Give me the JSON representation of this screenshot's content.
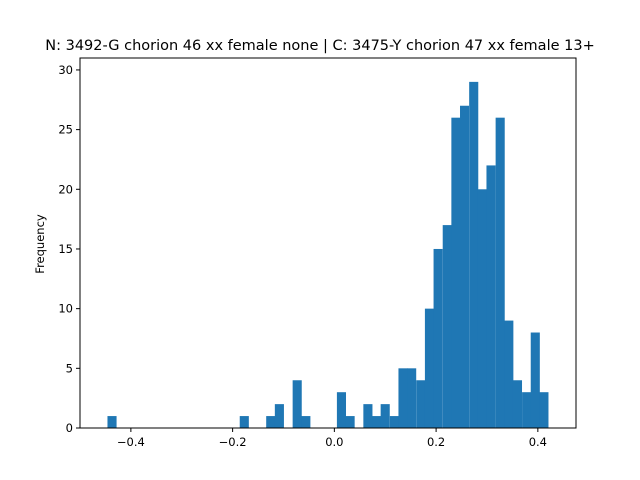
{
  "chart_data": {
    "type": "bar",
    "title": "N: 3492-G chorion 46 xx female none | C: 3475-Y chorion 47 xx female 13+",
    "xlabel": "",
    "ylabel": "Frequency",
    "xlim": [
      -0.5,
      0.475
    ],
    "ylim": [
      0,
      31
    ],
    "grid": false,
    "legend": "none",
    "bar_color": "#1f77b4",
    "bin_width": 0.0173,
    "x_ticks": [
      -0.4,
      -0.2,
      0.0,
      0.2,
      0.4
    ],
    "x_tick_labels": [
      "−0.4",
      "−0.2",
      "0.0",
      "0.2",
      "0.4"
    ],
    "y_ticks": [
      0,
      5,
      10,
      15,
      20,
      25,
      30
    ],
    "y_tick_labels": [
      "0",
      "5",
      "10",
      "15",
      "20",
      "25",
      "30"
    ],
    "bins": [
      {
        "x": -0.446,
        "count": 1
      },
      {
        "x": -0.186,
        "count": 1
      },
      {
        "x": -0.134,
        "count": 1
      },
      {
        "x": -0.117,
        "count": 2
      },
      {
        "x": -0.082,
        "count": 4
      },
      {
        "x": -0.065,
        "count": 1
      },
      {
        "x": 0.005,
        "count": 3
      },
      {
        "x": 0.022,
        "count": 1
      },
      {
        "x": 0.057,
        "count": 2
      },
      {
        "x": 0.074,
        "count": 1
      },
      {
        "x": 0.091,
        "count": 2
      },
      {
        "x": 0.109,
        "count": 1
      },
      {
        "x": 0.126,
        "count": 5
      },
      {
        "x": 0.143,
        "count": 5
      },
      {
        "x": 0.161,
        "count": 4
      },
      {
        "x": 0.178,
        "count": 10
      },
      {
        "x": 0.195,
        "count": 15
      },
      {
        "x": 0.213,
        "count": 17
      },
      {
        "x": 0.23,
        "count": 26
      },
      {
        "x": 0.247,
        "count": 27
      },
      {
        "x": 0.265,
        "count": 29
      },
      {
        "x": 0.282,
        "count": 20
      },
      {
        "x": 0.299,
        "count": 22
      },
      {
        "x": 0.317,
        "count": 26
      },
      {
        "x": 0.334,
        "count": 9
      },
      {
        "x": 0.351,
        "count": 4
      },
      {
        "x": 0.369,
        "count": 3
      },
      {
        "x": 0.386,
        "count": 8
      },
      {
        "x": 0.403,
        "count": 3
      }
    ]
  }
}
